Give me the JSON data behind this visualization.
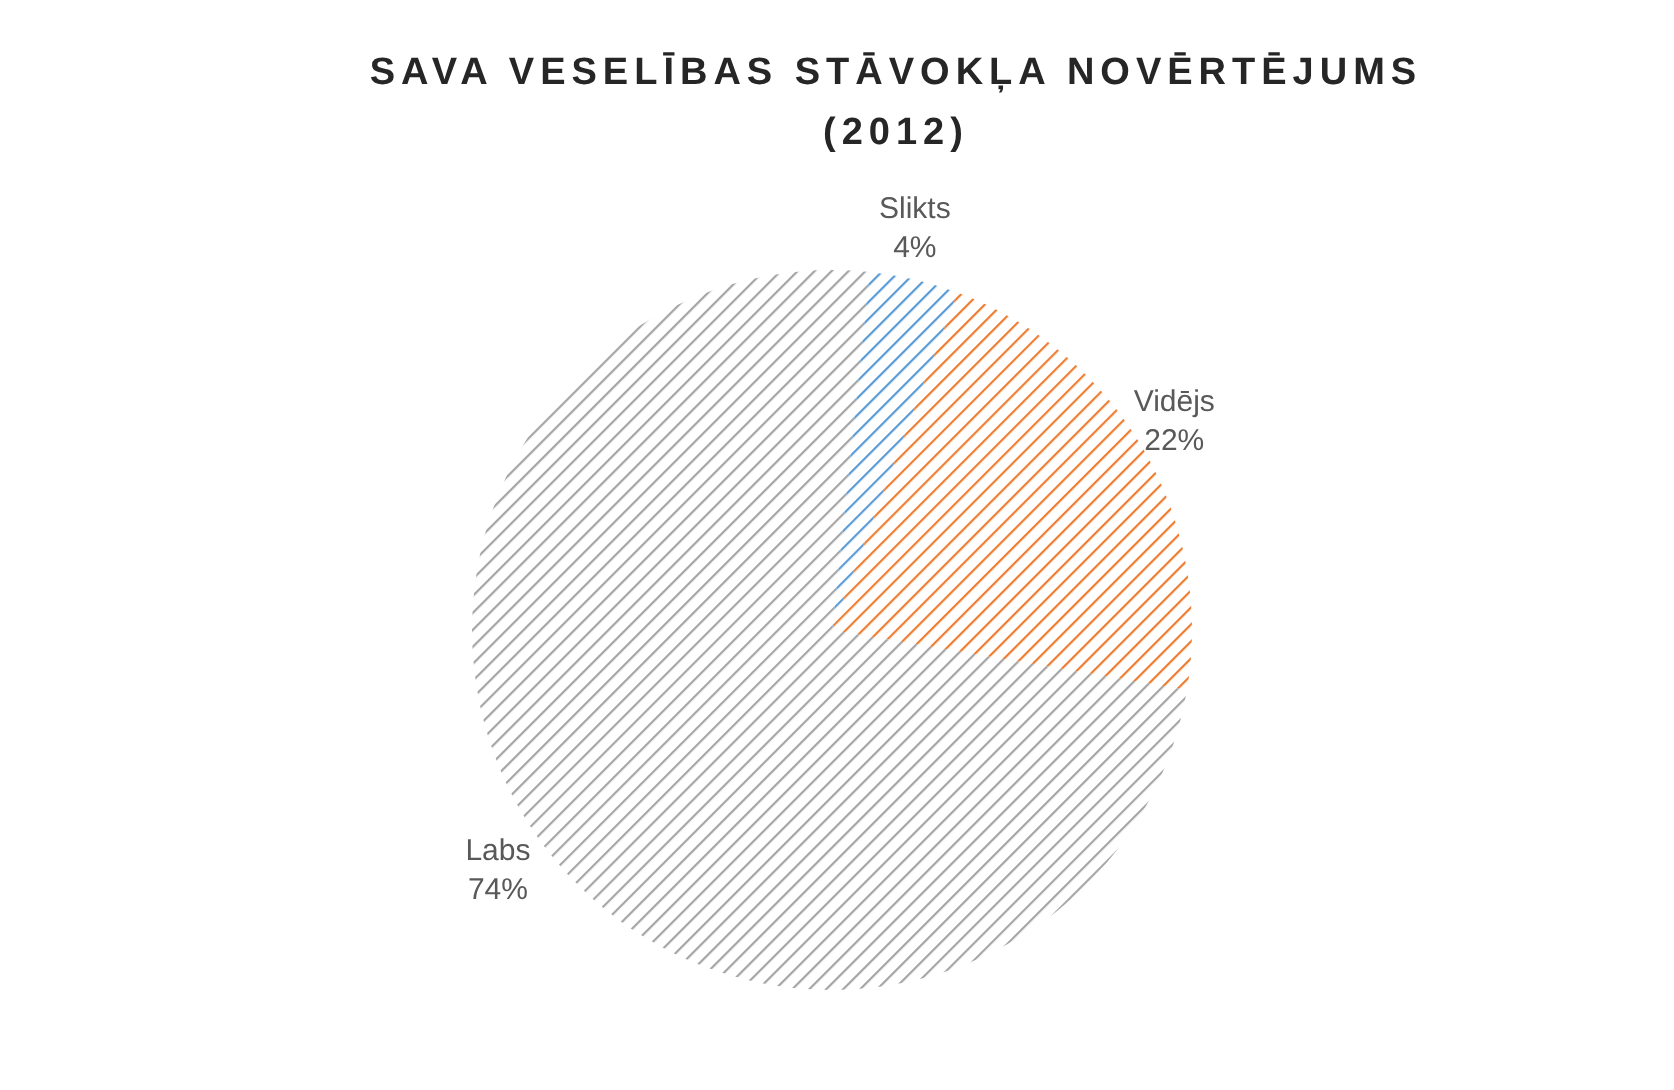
{
  "chart_data": {
    "type": "pie",
    "title": "SAVA VESELĪBAS STĀVOKĻA NOVĒRTĒJUMS (2012)",
    "categories": [
      "Slikts",
      "Vidējs",
      "Labs"
    ],
    "values": [
      4,
      22,
      74
    ],
    "colors": [
      "#5b9bd5",
      "#ed7d31",
      "#a5a5a5"
    ],
    "value_labels": [
      "4%",
      "22%",
      "74%"
    ],
    "legend": false
  }
}
